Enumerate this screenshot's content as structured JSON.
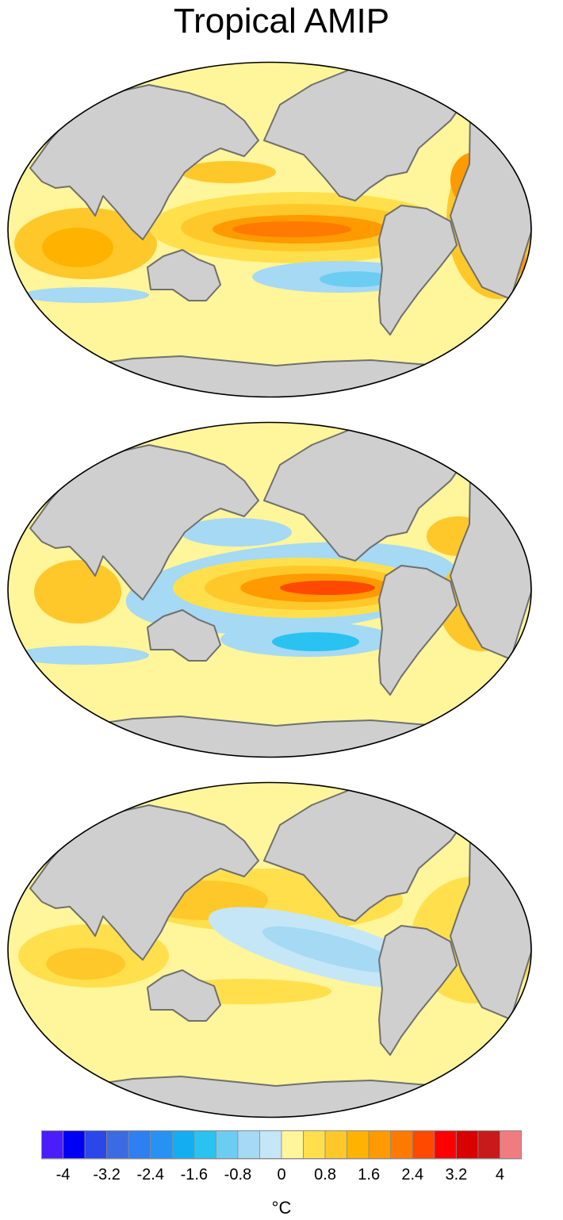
{
  "title": "Tropical AMIP",
  "unit_label": "°C",
  "panels": [
    {
      "name": "panel-1",
      "mode": "ninoA"
    },
    {
      "name": "panel-2",
      "mode": "ninoB"
    },
    {
      "name": "panel-3",
      "mode": "warm"
    }
  ],
  "colors": {
    "land": "#cfcfcf",
    "coast": "#707070",
    "ocean_neutral": "#fff59a",
    "border": "#000000"
  },
  "colorbar": {
    "colors": [
      "#4a1dfa",
      "#0000f5",
      "#2a47ea",
      "#3c6ae2",
      "#2e7ff1",
      "#2692f4",
      "#15adf2",
      "#2ac2f1",
      "#6ccdf2",
      "#a5d9f4",
      "#c4e6f7",
      "#fff59a",
      "#ffe04c",
      "#ffc82a",
      "#ffb300",
      "#ff9a00",
      "#ff7a00",
      "#ff4800",
      "#ff0000",
      "#d80000",
      "#c81a1a",
      "#f07c80"
    ],
    "tick_labels": [
      "-4",
      "-3.2",
      "-2.4",
      "-1.6",
      "-0.8",
      "0",
      "0.8",
      "1.6",
      "2.4",
      "3.2",
      "4"
    ]
  }
}
